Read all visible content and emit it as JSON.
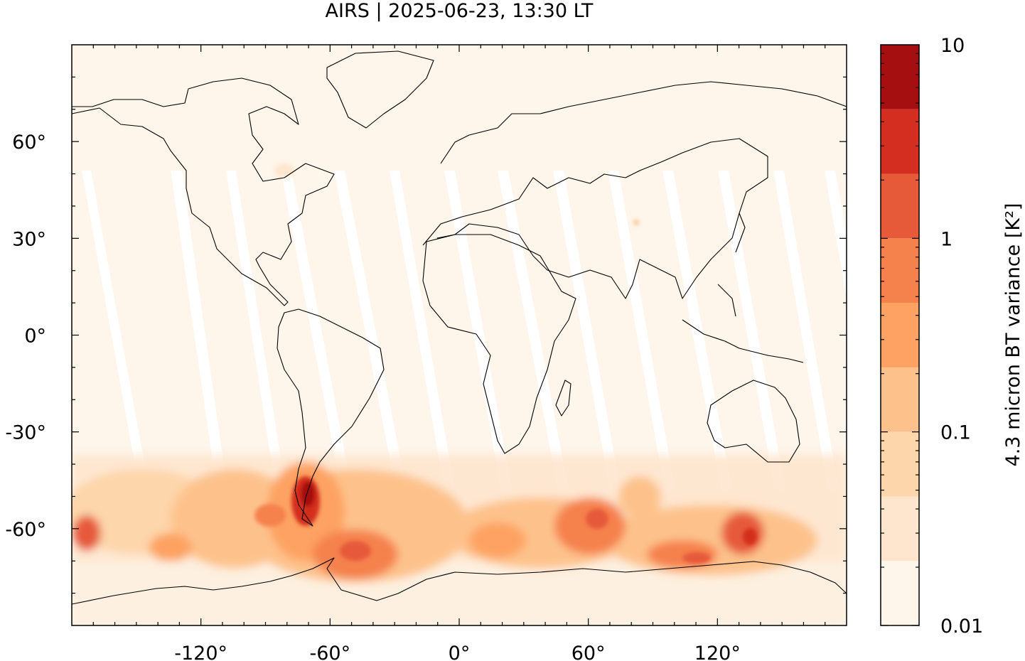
{
  "title": "AIRS | 2025-06-23, 13:30 LT",
  "map": {
    "projection": "equirectangular",
    "lon_range": [
      -180,
      180
    ],
    "lat_range": [
      -90,
      90
    ],
    "x_ticks": [
      {
        "value": -120,
        "label": "-120°"
      },
      {
        "value": -60,
        "label": "-60°"
      },
      {
        "value": 0,
        "label": "0°"
      },
      {
        "value": 60,
        "label": "60°"
      },
      {
        "value": 120,
        "label": "120°"
      }
    ],
    "y_ticks": [
      {
        "value": 60,
        "label": "60°"
      },
      {
        "value": 30,
        "label": "30°"
      },
      {
        "value": 0,
        "label": "0°"
      },
      {
        "value": -30,
        "label": "-30°"
      },
      {
        "value": -60,
        "label": "-60°"
      }
    ],
    "background_color": "#fef5eb",
    "coastline_color": "#000000"
  },
  "colorbar": {
    "label": "4.3 micron BT variance [K²]",
    "scale": "log",
    "range": [
      0.01,
      10
    ],
    "ticks": [
      {
        "value": 10,
        "label": "10"
      },
      {
        "value": 1,
        "label": "1"
      },
      {
        "value": 0.1,
        "label": "0.1"
      },
      {
        "value": 0.01,
        "label": "0.01"
      }
    ],
    "levels": [
      "#fef5eb",
      "#fee6ce",
      "#fdd6ab",
      "#fdc28c",
      "#fda262",
      "#f5814d",
      "#e65a3a",
      "#d32e1f",
      "#a50f0f"
    ]
  }
}
